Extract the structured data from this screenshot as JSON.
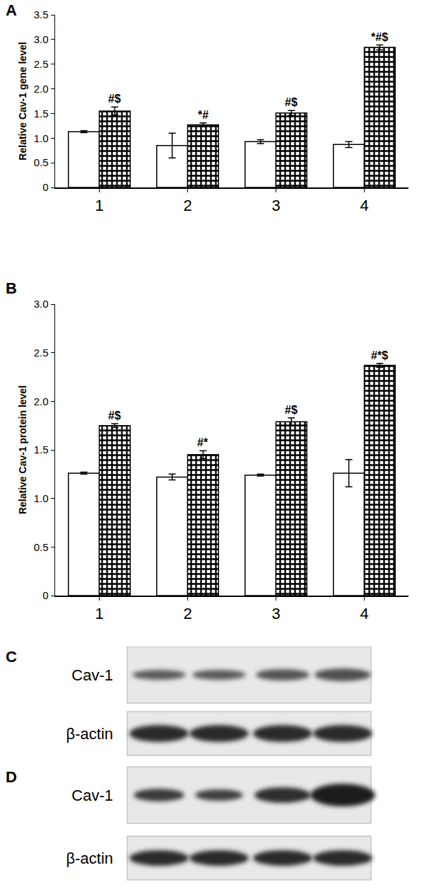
{
  "chart_data": [
    {
      "type": "bar",
      "panel": "A",
      "y_label": "Relative Cav-1 gene level",
      "categories": [
        "1",
        "2",
        "3",
        "4"
      ],
      "ylim": [
        0,
        3.5
      ],
      "yticks": [
        0,
        0.5,
        {
          "value": 1,
          "label": "1.0"
        },
        1.5,
        {
          "value": 2,
          "label": "2.0"
        },
        2.5,
        {
          "value": 3,
          "label": "3.0"
        },
        3.5
      ],
      "series": [
        {
          "color": "#ffffff",
          "marker": "solid",
          "values": [
            1.13,
            0.85,
            0.93,
            0.87
          ],
          "errors": [
            0.02,
            0.25,
            0.04,
            0.06
          ],
          "significance": [
            null,
            null,
            null,
            null
          ]
        },
        {
          "color": "#000000",
          "marker": "checkered",
          "values": [
            1.55,
            1.27,
            1.51,
            2.84
          ],
          "errors": [
            0.08,
            0.04,
            0.05,
            0.05
          ],
          "significance": [
            "#$",
            "*#",
            "#$",
            "*#$"
          ]
        }
      ]
    },
    {
      "type": "bar",
      "panel": "B",
      "y_label": "Relative Cav-1 protein level",
      "categories": [
        "1",
        "2",
        "3",
        "4"
      ],
      "ylim": [
        0,
        3
      ],
      "yticks": [
        0,
        0.5,
        {
          "value": 1,
          "label": "1.0"
        },
        1.5,
        {
          "value": 2,
          "label": "2.0"
        },
        2.5,
        {
          "value": 3,
          "label": "3.0"
        }
      ],
      "series": [
        {
          "color": "#ffffff",
          "marker": "solid",
          "values": [
            1.26,
            1.22,
            1.24,
            1.26
          ],
          "errors": [
            0.01,
            0.03,
            0.01,
            0.14
          ],
          "significance": [
            null,
            null,
            null,
            null
          ]
        },
        {
          "color": "#000000",
          "marker": "checkered",
          "values": [
            1.75,
            1.45,
            1.79,
            2.37
          ],
          "errors": [
            0.02,
            0.04,
            0.04,
            0.02
          ],
          "significance": [
            "#$",
            "#*",
            "#$",
            "#*$"
          ]
        }
      ]
    }
  ],
  "blots": [
    {
      "panel": "C",
      "rows": [
        {
          "label": "Cav-1"
        },
        {
          "label": "β-actin"
        }
      ]
    },
    {
      "panel": "D",
      "rows": [
        {
          "label": "Cav-1"
        },
        {
          "label": "β-actin"
        }
      ]
    }
  ]
}
